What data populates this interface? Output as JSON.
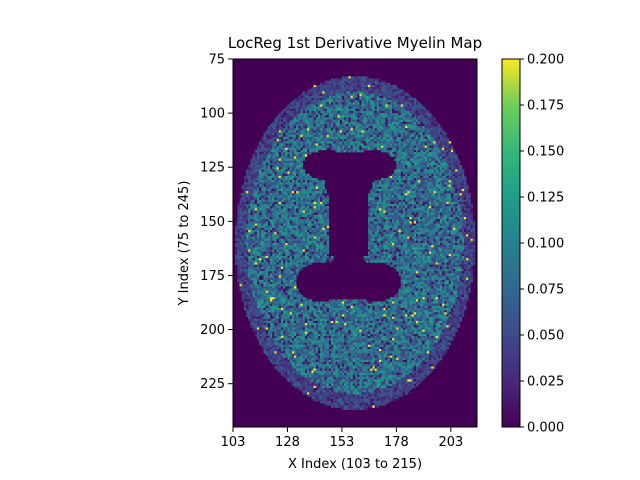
{
  "chart_data": {
    "type": "heatmap",
    "title": "LocReg 1st Derivative Myelin Map",
    "xlabel": "X Index (103 to 215)",
    "ylabel": "Y Index (75 to 245)",
    "xlim": [
      103,
      215
    ],
    "ylim": [
      75,
      245
    ],
    "y_inverted": true,
    "x_ticks": [
      103,
      128,
      153,
      178,
      203
    ],
    "y_ticks": [
      75,
      100,
      125,
      150,
      175,
      200,
      225
    ],
    "colorbar": {
      "colormap": "viridis",
      "vmin": 0.0,
      "vmax": 0.2,
      "ticks": [
        "0.000",
        "0.025",
        "0.050",
        "0.075",
        "0.100",
        "0.125",
        "0.150",
        "0.175",
        "0.200"
      ]
    },
    "description_regions": {
      "brain_center_x": 159,
      "brain_center_y": 160,
      "brain_half_width": 55,
      "brain_half_height": 77,
      "typical_white_matter_value": 0.09,
      "ventricle_value": 0.0,
      "background_value": 0.0
    }
  },
  "colors": {
    "viridis_min": "#440154",
    "viridis_max": "#fde725"
  }
}
